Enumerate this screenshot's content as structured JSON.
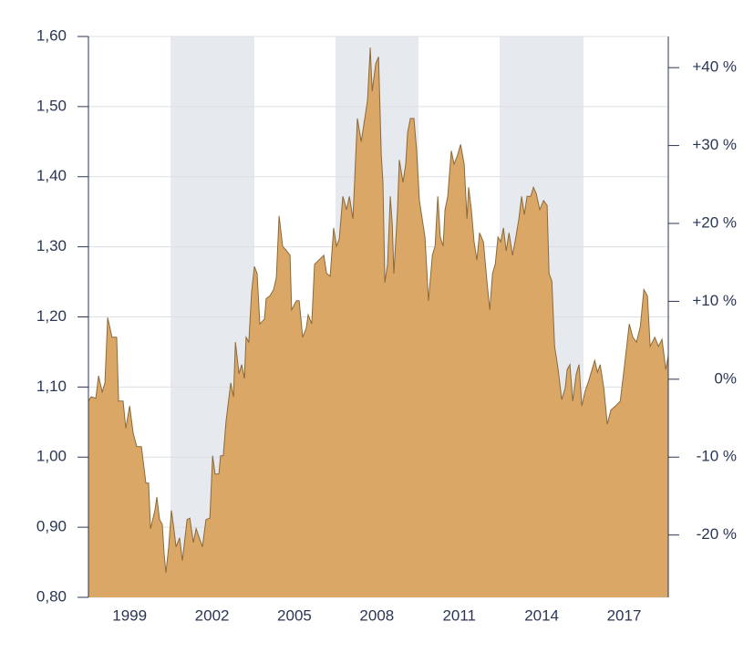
{
  "chart_data": {
    "type": "area",
    "color": "#dba766",
    "line_color": "#8a6a3a",
    "grid": true,
    "xlim": [
      1997.5,
      2018.61
    ],
    "xticks": [
      1999,
      2002,
      2005,
      2008,
      2011,
      2014,
      2017
    ],
    "ylim": [
      0.8,
      1.6
    ],
    "yticks": [
      {
        "value": 0.8,
        "label": "0,80"
      },
      {
        "value": 0.9,
        "label": "0,90"
      },
      {
        "value": 1.0,
        "label": "1,00"
      },
      {
        "value": 1.1,
        "label": "1,10"
      },
      {
        "value": 1.2,
        "label": "1,20"
      },
      {
        "value": 1.3,
        "label": "1,30"
      },
      {
        "value": 1.4,
        "label": "1,40"
      },
      {
        "value": 1.5,
        "label": "1,50"
      },
      {
        "value": 1.6,
        "label": "1,60"
      }
    ],
    "y2lim": [
      -28,
      44
    ],
    "y2ticks": [
      {
        "value": -20,
        "label": "-20 %"
      },
      {
        "value": -10,
        "label": "-10 %"
      },
      {
        "value": 0,
        "label": "0%"
      },
      {
        "value": 10,
        "label": "+10 %"
      },
      {
        "value": 20,
        "label": "+20 %"
      },
      {
        "value": 30,
        "label": "+30 %"
      },
      {
        "value": 40,
        "label": "+40 %"
      }
    ],
    "x": [
      1997.5,
      1997.6,
      1997.77,
      1997.87,
      1998.0,
      1998.1,
      1998.2,
      1998.36,
      1998.53,
      1998.6,
      1998.76,
      1998.86,
      1999.0,
      1999.13,
      1999.26,
      1999.43,
      1999.59,
      1999.69,
      1999.76,
      1999.92,
      1999.99,
      2000.09,
      2000.19,
      2000.26,
      2000.32,
      2000.42,
      2000.52,
      2000.59,
      2000.69,
      2000.82,
      2000.92,
      2001.09,
      2001.19,
      2001.32,
      2001.42,
      2001.65,
      2001.78,
      2001.92,
      2002.02,
      2002.11,
      2002.25,
      2002.31,
      2002.41,
      2002.51,
      2002.68,
      2002.78,
      2002.85,
      2002.98,
      2003.08,
      2003.18,
      2003.24,
      2003.34,
      2003.44,
      2003.54,
      2003.64,
      2003.74,
      2003.91,
      2003.97,
      2004.11,
      2004.24,
      2004.34,
      2004.44,
      2004.57,
      2004.7,
      2004.84,
      2004.9,
      2005.07,
      2005.17,
      2005.3,
      2005.43,
      2005.5,
      2005.63,
      2005.73,
      2006.07,
      2006.17,
      2006.3,
      2006.43,
      2006.53,
      2006.63,
      2006.76,
      2006.9,
      2007.0,
      2007.13,
      2007.29,
      2007.43,
      2007.56,
      2007.66,
      2007.76,
      2007.83,
      2007.96,
      2008.06,
      2008.16,
      2008.22,
      2008.29,
      2008.39,
      2008.49,
      2008.56,
      2008.62,
      2008.75,
      2008.82,
      2008.95,
      2009.05,
      2009.12,
      2009.22,
      2009.35,
      2009.45,
      2009.55,
      2009.75,
      2009.88,
      2010.02,
      2010.12,
      2010.22,
      2010.31,
      2010.41,
      2010.48,
      2010.58,
      2010.71,
      2010.81,
      2010.94,
      2011.05,
      2011.18,
      2011.28,
      2011.34,
      2011.44,
      2011.54,
      2011.64,
      2011.74,
      2011.88,
      2012.01,
      2012.11,
      2012.21,
      2012.31,
      2012.41,
      2012.51,
      2012.61,
      2012.71,
      2012.81,
      2012.94,
      2013.07,
      2013.17,
      2013.27,
      2013.37,
      2013.47,
      2013.6,
      2013.7,
      2013.8,
      2013.93,
      2014.07,
      2014.2,
      2014.27,
      2014.37,
      2014.47,
      2014.6,
      2014.73,
      2014.86,
      2014.93,
      2015.03,
      2015.13,
      2015.26,
      2015.36,
      2015.46,
      2015.59,
      2015.69,
      2015.79,
      2015.93,
      2016.03,
      2016.13,
      2016.26,
      2016.39,
      2016.52,
      2016.69,
      2016.86,
      2017.02,
      2017.19,
      2017.32,
      2017.45,
      2017.59,
      2017.72,
      2017.85,
      2017.95,
      2018.12,
      2018.25,
      2018.38,
      2018.52,
      2018.61
    ],
    "values": [
      1.08,
      1.086,
      1.084,
      1.116,
      1.093,
      1.106,
      1.199,
      1.171,
      1.171,
      1.08,
      1.08,
      1.041,
      1.073,
      1.034,
      1.015,
      1.015,
      0.963,
      0.963,
      0.898,
      0.924,
      0.943,
      0.911,
      0.904,
      0.859,
      0.835,
      0.872,
      0.924,
      0.904,
      0.872,
      0.885,
      0.852,
      0.911,
      0.913,
      0.878,
      0.898,
      0.872,
      0.911,
      0.913,
      1.002,
      0.976,
      0.976,
      1.002,
      1.002,
      1.051,
      1.106,
      1.086,
      1.164,
      1.119,
      1.132,
      1.112,
      1.171,
      1.164,
      1.236,
      1.272,
      1.262,
      1.19,
      1.197,
      1.226,
      1.23,
      1.239,
      1.256,
      1.344,
      1.301,
      1.295,
      1.288,
      1.21,
      1.223,
      1.223,
      1.171,
      1.184,
      1.203,
      1.19,
      1.275,
      1.288,
      1.262,
      1.258,
      1.327,
      1.301,
      1.311,
      1.372,
      1.353,
      1.372,
      1.34,
      1.483,
      1.45,
      1.483,
      1.509,
      1.584,
      1.522,
      1.561,
      1.571,
      1.431,
      1.392,
      1.249,
      1.275,
      1.372,
      1.333,
      1.262,
      1.35,
      1.424,
      1.392,
      1.418,
      1.463,
      1.483,
      1.483,
      1.437,
      1.366,
      1.314,
      1.223,
      1.288,
      1.301,
      1.372,
      1.314,
      1.301,
      1.353,
      1.372,
      1.437,
      1.418,
      1.431,
      1.446,
      1.418,
      1.34,
      1.385,
      1.353,
      1.307,
      1.281,
      1.32,
      1.307,
      1.249,
      1.21,
      1.262,
      1.275,
      1.314,
      1.307,
      1.327,
      1.294,
      1.32,
      1.288,
      1.316,
      1.34,
      1.372,
      1.346,
      1.372,
      1.372,
      1.385,
      1.376,
      1.353,
      1.366,
      1.359,
      1.262,
      1.251,
      1.158,
      1.125,
      1.082,
      1.099,
      1.125,
      1.132,
      1.08,
      1.119,
      1.132,
      1.073,
      1.095,
      1.106,
      1.119,
      1.138,
      1.121,
      1.132,
      1.099,
      1.047,
      1.067,
      1.073,
      1.08,
      1.132,
      1.19,
      1.171,
      1.164,
      1.186,
      1.239,
      1.23,
      1.158,
      1.171,
      1.158,
      1.168,
      1.125,
      1.145
    ]
  }
}
